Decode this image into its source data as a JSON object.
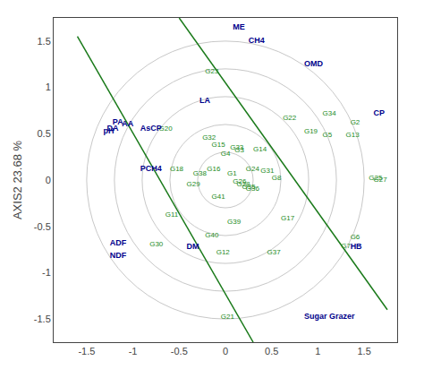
{
  "chart_data": {
    "type": "scatter",
    "ylabel": "AXIS2 23.68 %",
    "xlim": [
      -1.75,
      1.75
    ],
    "ylim": [
      -1.75,
      1.75
    ],
    "xticks": [
      -1.5,
      -1,
      -0.5,
      0,
      0.5,
      1,
      1.5
    ],
    "yticks": [
      -1.5,
      -1,
      -0.5,
      0,
      0.5,
      1,
      1.5
    ],
    "grid": false,
    "circle_radii": [
      0.3,
      0.6,
      0.9,
      1.2,
      1.5
    ],
    "circle_color": "#C8C8C8",
    "lines": [
      {
        "x": [
          -1.6,
          0.3
        ],
        "y": [
          1.55,
          -1.75
        ]
      },
      {
        "x": [
          -0.5,
          1.75
        ],
        "y": [
          1.75,
          -1.4
        ]
      }
    ],
    "line_color": "#1a7a1a",
    "genotypes": {
      "labels": [
        "G1",
        "G2",
        "G3",
        "G4",
        "G5",
        "G6",
        "G7",
        "G8",
        "G11",
        "G12",
        "G13",
        "G14",
        "G15",
        "G16",
        "G17",
        "G18",
        "G19",
        "G20",
        "G21",
        "G22",
        "G23",
        "G24",
        "G25",
        "G26",
        "G27",
        "G28",
        "G29",
        "G30",
        "G31",
        "G32",
        "G33",
        "G34",
        "G35",
        "G36",
        "G37",
        "G38",
        "G39",
        "G40",
        "G41"
      ],
      "x": [
        0.02,
        1.35,
        0.1,
        -0.05,
        1.05,
        1.35,
        1.25,
        0.5,
        -0.65,
        -0.1,
        1.3,
        0.3,
        -0.15,
        -0.2,
        0.6,
        -0.6,
        0.85,
        -0.72,
        -0.05,
        0.62,
        -0.22,
        0.22,
        1.55,
        0.08,
        1.6,
        0.12,
        -0.42,
        -0.82,
        0.38,
        -0.25,
        0.05,
        1.05,
        0.18,
        0.22,
        0.45,
        -0.35,
        0.02,
        -0.22,
        -0.15
      ],
      "y": [
        0.07,
        0.62,
        0.32,
        0.28,
        0.48,
        -0.62,
        -0.72,
        0.02,
        -0.38,
        -0.78,
        0.48,
        0.33,
        0.38,
        0.12,
        -0.42,
        0.12,
        0.52,
        0.55,
        -1.48,
        0.67,
        1.17,
        0.12,
        0.02,
        -0.02,
        0,
        -0.05,
        -0.05,
        -0.7,
        0.1,
        0.45,
        0.35,
        0.72,
        -0.08,
        -0.1,
        -0.78,
        0.07,
        -0.45,
        -0.6,
        -0.18
      ],
      "color": "#228B22"
    },
    "traits": {
      "labels": [
        "ME",
        "CH4",
        "OMD",
        "CP",
        "LA",
        "AA",
        "PA",
        "DA",
        "pH",
        "AsCP",
        "PCH4",
        "ADF",
        "NDF",
        "DM",
        "HB",
        "Sugar Grazer"
      ],
      "x": [
        0.08,
        0.25,
        0.85,
        1.6,
        -0.28,
        -1.12,
        -1.22,
        -1.28,
        -1.32,
        -0.92,
        -0.92,
        -1.25,
        -1.25,
        -0.42,
        1.35,
        0.85
      ],
      "y": [
        1.65,
        1.5,
        1.25,
        0.72,
        0.85,
        0.6,
        0.62,
        0.55,
        0.52,
        0.55,
        0.12,
        -0.68,
        -0.82,
        -0.72,
        -0.72,
        -1.48
      ],
      "color": "#00008B"
    }
  }
}
